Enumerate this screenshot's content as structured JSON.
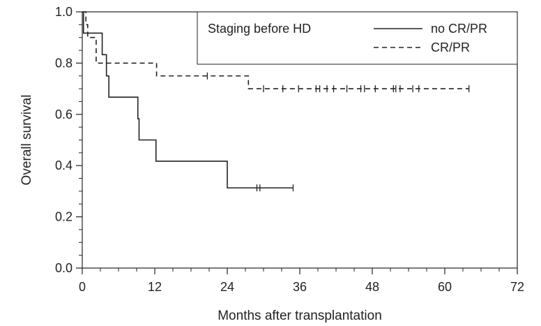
{
  "chart_data": {
    "type": "line",
    "subtype": "kaplan-meier step curve with censor marks",
    "xlabel": "Months after transplantation",
    "ylabel": "Overall survival",
    "xlim": [
      0,
      72
    ],
    "ylim": [
      0,
      1.0
    ],
    "x_ticks": [
      0,
      12,
      24,
      36,
      48,
      60,
      72
    ],
    "x_tick_labels": [
      "0",
      "12",
      "24",
      "36",
      "48",
      "60",
      "72"
    ],
    "y_ticks": [
      0.0,
      0.2,
      0.4,
      0.6,
      0.8,
      1.0
    ],
    "y_tick_labels": [
      "0.0",
      "0.2",
      "0.4",
      "0.6",
      "0.8",
      "1.0"
    ],
    "grid": false,
    "legend": {
      "title": "Staging before HD",
      "placement": "top-right",
      "framed": true
    },
    "series": [
      {
        "name": "no CR/PR",
        "line_style": "solid",
        "color": "#222222",
        "steps": [
          [
            0,
            1.0
          ],
          [
            0.2,
            0.917
          ],
          [
            3.3,
            0.833
          ],
          [
            4.0,
            0.75
          ],
          [
            4.4,
            0.667
          ],
          [
            9.2,
            0.583
          ],
          [
            9.4,
            0.5
          ],
          [
            12.2,
            0.417
          ],
          [
            24.0,
            0.313
          ]
        ],
        "end_x": 34.9,
        "censored_x": [
          28.9,
          29.4,
          34.9
        ]
      },
      {
        "name": "CR/PR",
        "line_style": "dashed",
        "color": "#222222",
        "steps": [
          [
            0,
            1.0
          ],
          [
            0.6,
            0.95
          ],
          [
            0.9,
            0.9
          ],
          [
            2.3,
            0.8
          ],
          [
            12.3,
            0.75
          ],
          [
            27.5,
            0.7
          ]
        ],
        "end_x": 64.0,
        "censored_x": [
          20.7,
          30.0,
          33.2,
          35.8,
          38.7,
          39.3,
          40.5,
          41.6,
          43.8,
          46.1,
          46.7,
          48.5,
          51.5,
          51.9,
          52.6,
          54.7,
          55.7,
          64.0
        ]
      }
    ]
  }
}
